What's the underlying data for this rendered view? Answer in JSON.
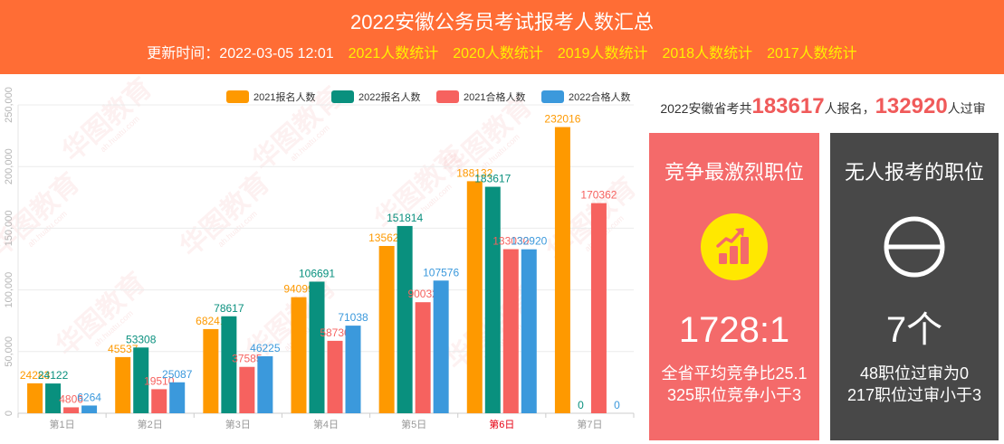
{
  "header": {
    "title": "2022安徽公务员考试报考人数汇总",
    "update_time": "更新时间：2022-03-05 12:01",
    "links": [
      "2021人数统计",
      "2020人数统计",
      "2019人数统计",
      "2018人数统计",
      "2017人数统计"
    ],
    "background_color": "#ff6d35",
    "link_color": "#fff100"
  },
  "summary": {
    "prefix": "2022安徽省考共",
    "registered": "183617",
    "registered_unit": "人报名，",
    "approved": "132920",
    "approved_unit": "人过审",
    "number_color": "#f05a5a"
  },
  "cards": [
    {
      "title": "竞争最激烈职位",
      "icon": "rising-bar-chart-icon",
      "value": "1728:1",
      "lines": [
        "全省平均竞争比25.1",
        "325职位竞争小于3"
      ],
      "background_color": "#f46a6a"
    },
    {
      "title": "无人报考的职位",
      "icon": "circle-minus-icon",
      "value": "7个",
      "lines": [
        "48职位过审为0",
        "217职位过审小于3"
      ],
      "background_color": "#484848"
    }
  ],
  "watermark": {
    "text": "华图教育",
    "url": "ah.huatu.com"
  },
  "chart_data": {
    "type": "bar",
    "categories": [
      "第1日",
      "第2日",
      "第3日",
      "第4日",
      "第5日",
      "第6日",
      "第7日"
    ],
    "highlighted_category_index": 5,
    "highlight_color": "#e60012",
    "series": [
      {
        "name": "2021报名人数",
        "color": "#fe9900",
        "values": [
          24283,
          45537,
          68241,
          94099,
          135624,
          188132,
          232016
        ]
      },
      {
        "name": "2022报名人数",
        "color": "#09907e",
        "values": [
          24122,
          53308,
          78617,
          106691,
          151814,
          183617,
          0
        ]
      },
      {
        "name": "2021合格人数",
        "color": "#f6625f",
        "values": [
          4806,
          19510,
          37585,
          58730,
          90032,
          133030,
          170362
        ]
      },
      {
        "name": "2022合格人数",
        "color": "#3b99dc",
        "values": [
          6264,
          25087,
          46225,
          71038,
          107576,
          132920,
          0
        ]
      }
    ],
    "y_ticks": [
      "0",
      "50,000",
      "100,000",
      "150,000",
      "200,000",
      "250,000"
    ],
    "ylim": [
      0,
      250000
    ],
    "grid": true,
    "legend": "top-right",
    "data_labels": true
  }
}
